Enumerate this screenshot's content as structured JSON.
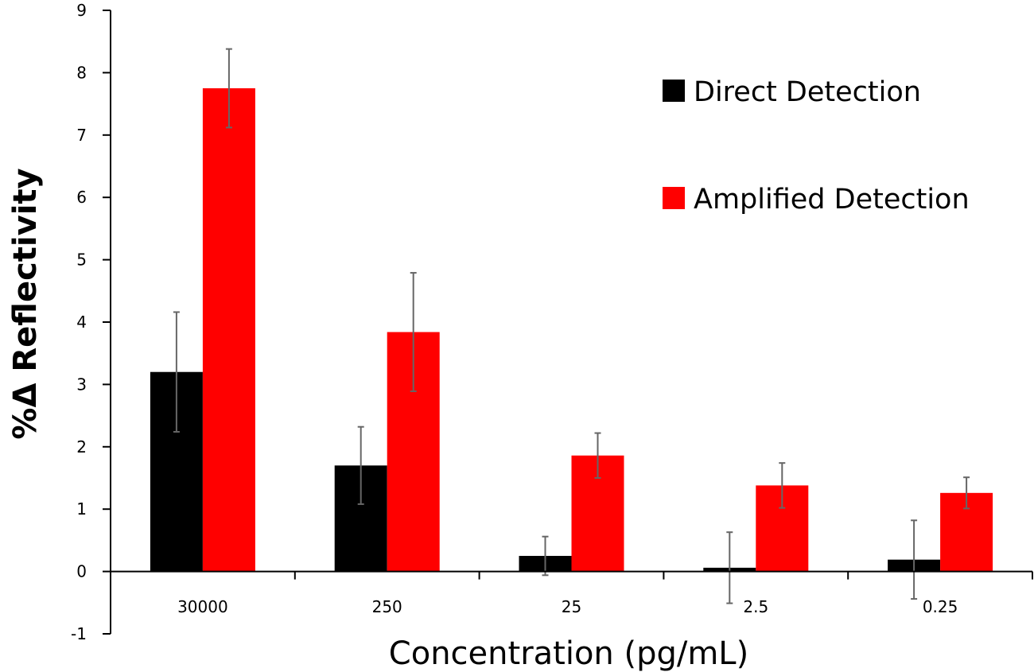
{
  "chart_data": {
    "type": "bar",
    "title": "",
    "xlabel": "Concentration (pg/mL)",
    "ylabel": "%Δ Reflectivity",
    "ylim": [
      -1,
      9
    ],
    "yticks": [
      "-1",
      "0",
      "1",
      "2",
      "3",
      "4",
      "5",
      "6",
      "7",
      "8",
      "9"
    ],
    "categories": [
      "30000",
      "250",
      "25",
      "2.5",
      "0.25"
    ],
    "grid": false,
    "legend_position": "top-right",
    "series": [
      {
        "name": "Direct Detection",
        "color": "#000000",
        "values": [
          3.2,
          1.7,
          0.25,
          0.06,
          0.19
        ],
        "errors": [
          0.96,
          0.62,
          0.31,
          0.57,
          0.63
        ]
      },
      {
        "name": "Amplified Detection",
        "color": "#ff0000",
        "values": [
          7.75,
          3.84,
          1.86,
          1.38,
          1.26
        ],
        "errors": [
          0.63,
          0.95,
          0.36,
          0.36,
          0.25
        ]
      }
    ],
    "error_bar_color": "#666666"
  }
}
